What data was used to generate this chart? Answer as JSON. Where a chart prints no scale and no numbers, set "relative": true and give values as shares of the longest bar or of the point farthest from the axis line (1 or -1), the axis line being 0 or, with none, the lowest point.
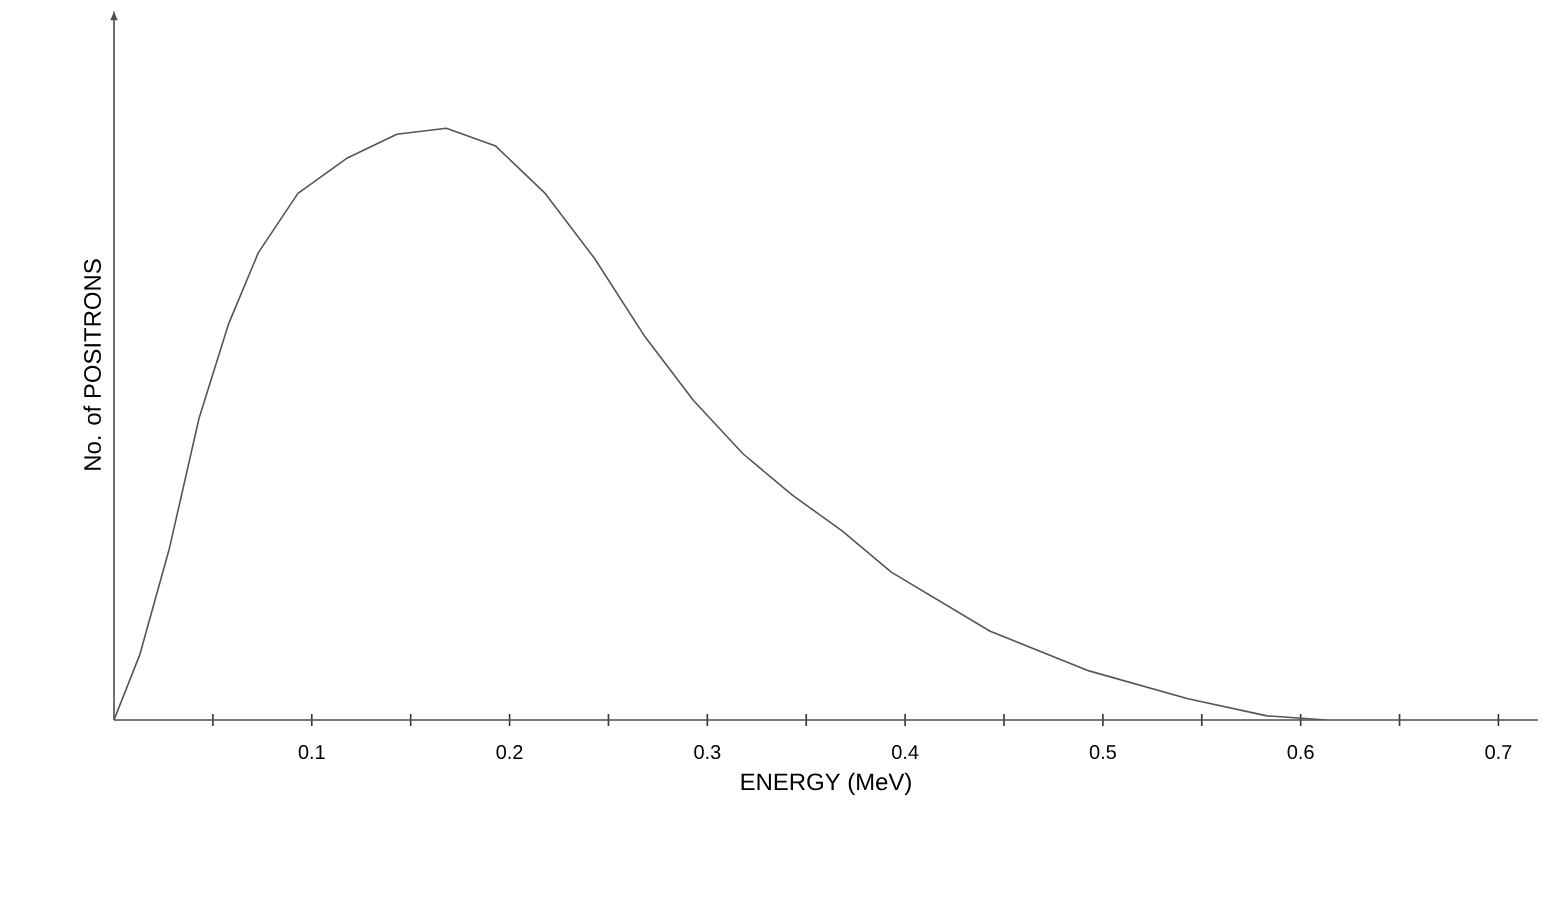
{
  "chart_data": {
    "type": "line",
    "relative": true,
    "xlabel": "ENERGY (MeV)",
    "ylabel": "No. of POSITRONS",
    "color": "#555555",
    "xlim": [
      0,
      0.72
    ],
    "xticks": [
      {
        "value": 0.05,
        "label": null
      },
      0.1,
      {
        "value": 0.15,
        "label": null
      },
      0.2,
      {
        "value": 0.25,
        "label": null
      },
      0.3,
      {
        "value": 0.35,
        "label": null
      },
      0.4,
      {
        "value": 0.45,
        "label": null
      },
      0.5,
      {
        "value": 0.55,
        "label": null
      },
      0.6,
      {
        "value": 0.65,
        "label": null
      },
      0.7
    ],
    "x": [
      0,
      0.013,
      0.028,
      0.043,
      0.058,
      0.073,
      0.093,
      0.118,
      0.143,
      0.168,
      0.193,
      0.218,
      0.243,
      0.268,
      0.293,
      0.318,
      0.343,
      0.368,
      0.393,
      0.443,
      0.493,
      0.543,
      0.583,
      0.613
    ],
    "values": [
      0,
      0.11,
      0.29,
      0.51,
      0.67,
      0.79,
      0.89,
      0.95,
      0.99,
      1,
      0.97,
      0.89,
      0.78,
      0.65,
      0.54,
      0.45,
      0.38,
      0.32,
      0.25,
      0.15,
      0.083,
      0.036,
      0.007,
      0
    ],
    "marker": "none",
    "line_style": "solid"
  }
}
